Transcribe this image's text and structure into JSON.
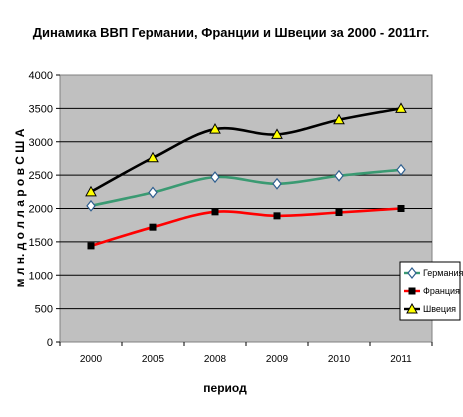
{
  "chart_data": {
    "type": "line",
    "title": "Динамика ВВП Германии, Франции и Швеции за 2000 - 2011гг.",
    "xlabel": "период",
    "ylabel": "м л н. д о л л а р о в  С Ш А",
    "categories": [
      "2000",
      "2005",
      "2008",
      "2009",
      "2010",
      "2011"
    ],
    "ylim": [
      0,
      4000
    ],
    "yticks": [
      0,
      500,
      1000,
      1500,
      2000,
      2500,
      3000,
      3500,
      4000
    ],
    "grid": true,
    "legend_position": "right",
    "series": [
      {
        "name": "Германия",
        "values": [
          2040,
          2240,
          2470,
          2370,
          2490,
          2580
        ],
        "color": "#3a9a72",
        "marker": "diamond"
      },
      {
        "name": "Франция",
        "values": [
          1440,
          1720,
          1950,
          1890,
          1940,
          2000
        ],
        "color": "#ff0000",
        "marker": "square"
      },
      {
        "name": "Швеция",
        "values": [
          2250,
          2760,
          3190,
          3110,
          3330,
          3500
        ],
        "color": "#000000",
        "marker": "triangle"
      }
    ]
  }
}
